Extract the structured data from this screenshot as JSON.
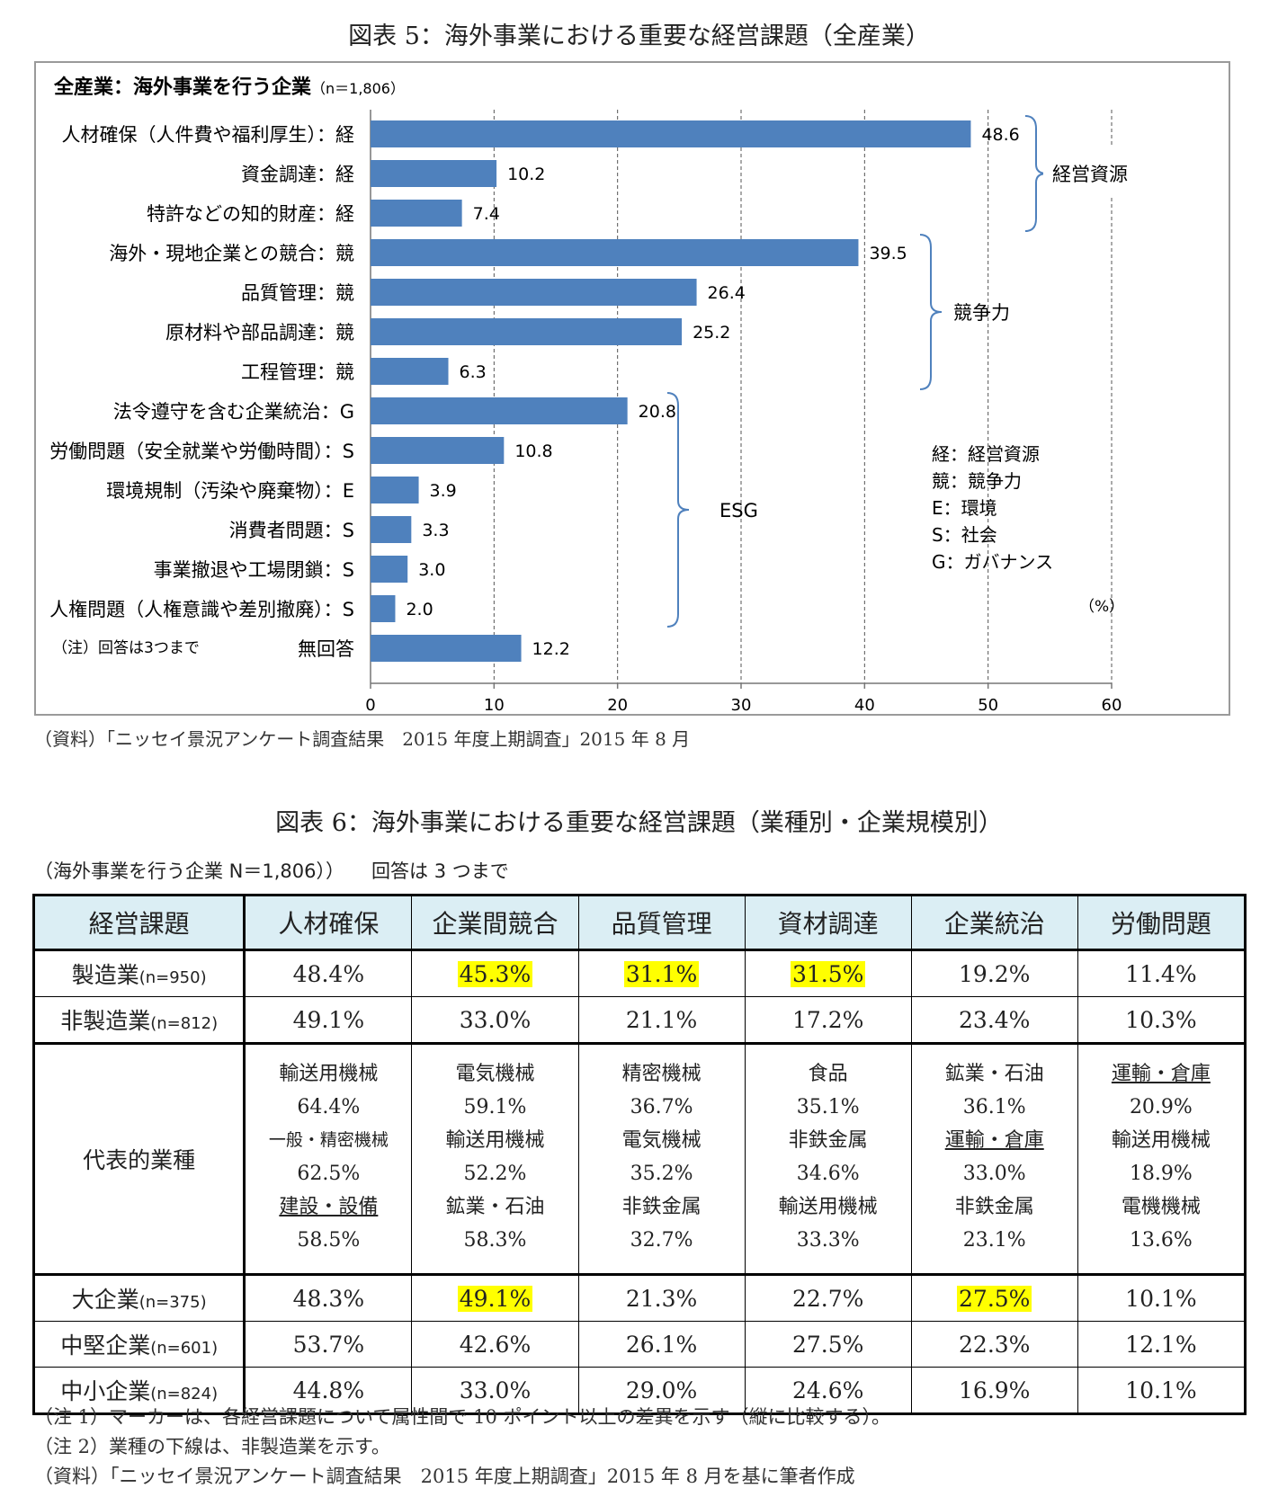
{
  "figure5": {
    "title": "図表 5：海外事業における重要な経営課題（全産業）",
    "source": "（資料）「ニッセイ景況アンケート調査結果　2015 年度上期調査」2015 年 8 月"
  },
  "chart_data": {
    "type": "bar",
    "orientation": "horizontal",
    "title": "全産業：海外事業を行う企業",
    "title_n": "（n＝1,806）",
    "unit_label": "（%）",
    "note": "（注）回答は3つまで",
    "categories": [
      "人材確保（人件費や福利厚生）：経",
      "資金調達：経",
      "特許などの知的財産：経",
      "海外・現地企業との競合：競",
      "品質管理：競",
      "原材料や部品調達：競",
      "工程管理：競",
      "法令遵守を含む企業統治：G",
      "労働問題（安全就業や労働時間）：S",
      "環境規制（汚染や廃棄物）：E",
      "消費者問題：S",
      "事業撤退や工場閉鎖：S",
      "人権問題（人権意識や差別撤廃）：S",
      "無回答"
    ],
    "values": [
      48.6,
      10.2,
      7.4,
      39.5,
      26.4,
      25.2,
      6.3,
      20.8,
      10.8,
      3.9,
      3.3,
      3.0,
      2.0,
      12.2
    ],
    "value_labels": [
      "48.6",
      "10.2",
      "7.4",
      "39.5",
      "26.4",
      "25.2",
      "6.3",
      "20.8",
      "10.8",
      "3.9",
      "3.3",
      "3.0",
      "2.0",
      "12.2"
    ],
    "xlim": [
      0,
      60
    ],
    "xticks": [
      0,
      10,
      20,
      30,
      40,
      50,
      60
    ],
    "bar_color": "#4f81bd",
    "grid": "vertical dashed",
    "groups": [
      {
        "label": "経営資源",
        "from": 0,
        "to": 2
      },
      {
        "label": "競争力",
        "from": 3,
        "to": 6
      },
      {
        "label": "ESG",
        "from": 7,
        "to": 12
      }
    ],
    "legend_lines": [
      "経：経営資源",
      "競：競争力",
      "E：環境",
      "S：社会",
      "G：ガバナンス"
    ]
  },
  "figure6": {
    "title": "図表 6：海外事業における重要な経営課題（業種別・企業規模別）",
    "subtitle": "（海外事業を行う企業 N＝1,806））",
    "subtitle2": "回答は 3 つまで",
    "headers": [
      "経営課題",
      "人材確保",
      "企業間競合",
      "品質管理",
      "資材調達",
      "企業統治",
      "労働問題"
    ],
    "rows_industry": [
      {
        "label": "製造業",
        "n": "(n=950)",
        "cells": [
          "48.4%",
          "45.3%",
          "31.1%",
          "31.5%",
          "19.2%",
          "11.4%"
        ],
        "highlight": [
          false,
          true,
          true,
          true,
          false,
          false
        ]
      },
      {
        "label": "非製造業",
        "n": "(n=812)",
        "cells": [
          "49.1%",
          "33.0%",
          "21.1%",
          "17.2%",
          "23.4%",
          "10.3%"
        ],
        "highlight": [
          false,
          false,
          false,
          false,
          false,
          false
        ]
      }
    ],
    "representative": {
      "label": "代表的業種",
      "cols": [
        [
          {
            "name": "輸送用機械",
            "value": "64.4%",
            "nonmfg": false,
            "small": false
          },
          {
            "name": "一般・精密機械",
            "value": "62.5%",
            "nonmfg": false,
            "small": true
          },
          {
            "name": "建設・設備",
            "value": "58.5%",
            "nonmfg": true,
            "small": false
          }
        ],
        [
          {
            "name": "電気機械",
            "value": "59.1%",
            "nonmfg": false,
            "small": false
          },
          {
            "name": "輸送用機械",
            "value": "52.2%",
            "nonmfg": false,
            "small": false
          },
          {
            "name": "鉱業・石油",
            "value": "58.3%",
            "nonmfg": false,
            "small": false
          }
        ],
        [
          {
            "name": "精密機械",
            "value": "36.7%",
            "nonmfg": false,
            "small": false
          },
          {
            "name": "電気機械",
            "value": "35.2%",
            "nonmfg": false,
            "small": false
          },
          {
            "name": "非鉄金属",
            "value": "32.7%",
            "nonmfg": false,
            "small": false
          }
        ],
        [
          {
            "name": "食品",
            "value": "35.1%",
            "nonmfg": false,
            "small": false
          },
          {
            "name": "非鉄金属",
            "value": "34.6%",
            "nonmfg": false,
            "small": false
          },
          {
            "name": "輸送用機械",
            "value": "33.3%",
            "nonmfg": false,
            "small": false
          }
        ],
        [
          {
            "name": "鉱業・石油",
            "value": "36.1%",
            "nonmfg": false,
            "small": false
          },
          {
            "name": "運輸・倉庫",
            "value": "33.0%",
            "nonmfg": true,
            "small": false
          },
          {
            "name": "非鉄金属",
            "value": "23.1%",
            "nonmfg": false,
            "small": false
          }
        ],
        [
          {
            "name": "運輸・倉庫",
            "value": "20.9%",
            "nonmfg": true,
            "small": false
          },
          {
            "name": "輸送用機械",
            "value": "18.9%",
            "nonmfg": false,
            "small": false
          },
          {
            "name": "電機機械",
            "value": "13.6%",
            "nonmfg": false,
            "small": false
          }
        ]
      ]
    },
    "rows_size": [
      {
        "label": "大企業",
        "n": "(n=375)",
        "cells": [
          "48.3%",
          "49.1%",
          "21.3%",
          "22.7%",
          "27.5%",
          "10.1%"
        ],
        "highlight": [
          false,
          true,
          false,
          false,
          true,
          false
        ]
      },
      {
        "label": "中堅企業",
        "n": "(n=601)",
        "cells": [
          "53.7%",
          "42.6%",
          "26.1%",
          "27.5%",
          "22.3%",
          "12.1%"
        ],
        "highlight": [
          false,
          false,
          false,
          false,
          false,
          false
        ]
      },
      {
        "label": "中小企業",
        "n": "(n=824)",
        "cells": [
          "44.8%",
          "33.0%",
          "29.0%",
          "24.6%",
          "16.9%",
          "10.1%"
        ],
        "highlight": [
          false,
          false,
          false,
          false,
          false,
          false
        ]
      }
    ],
    "notes": [
      "（注 1）マーカーは、各経営課題について属性間で 10 ポイント以上の差異を示す（縦に比較する）。",
      "（注 2）業種の下線は、非製造業を示す。",
      "（資料）「ニッセイ景況アンケート調査結果　2015 年度上期調査」2015 年 8 月を基に筆者作成"
    ]
  }
}
